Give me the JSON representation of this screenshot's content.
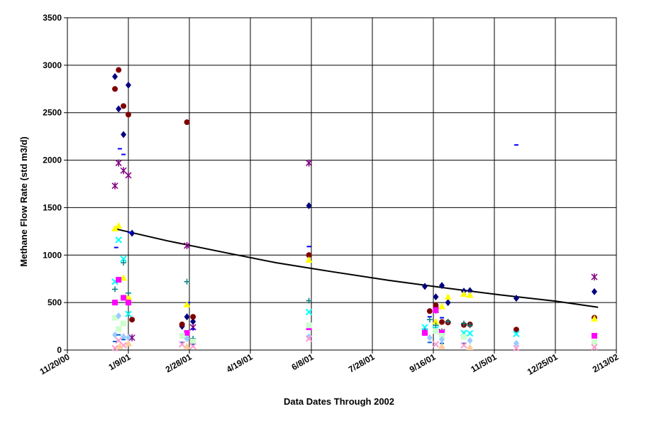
{
  "chart_data": {
    "type": "scatter",
    "title": "",
    "xlabel": "Data Dates Through 2002",
    "ylabel": "Methane Flow Rate (std m3/d)",
    "x_axis_type": "date",
    "xlim": [
      "2000-11-20",
      "2002-02-13"
    ],
    "ylim": [
      0,
      3500
    ],
    "x_ticks": [
      {
        "date": "2000-11-20",
        "label": "11/20/00"
      },
      {
        "date": "2001-01-09",
        "label": "1/9/01"
      },
      {
        "date": "2001-02-28",
        "label": "2/28/01"
      },
      {
        "date": "2001-04-19",
        "label": "4/19/01"
      },
      {
        "date": "2001-06-08",
        "label": "6/8/01"
      },
      {
        "date": "2001-07-28",
        "label": "7/28/01"
      },
      {
        "date": "2001-09-16",
        "label": "9/16/01"
      },
      {
        "date": "2001-11-05",
        "label": "11/5/01"
      },
      {
        "date": "2001-12-25",
        "label": "12/25/01"
      },
      {
        "date": "2002-02-13",
        "label": "2/13/02"
      }
    ],
    "y_ticks": [
      0,
      500,
      1000,
      1500,
      2000,
      2500,
      3000,
      3500
    ],
    "grid": true,
    "legend": "none",
    "series": [
      {
        "marker": "diamond",
        "color": "#000080",
        "points": [
          {
            "x": "2000-12-29",
            "y": 2880
          },
          {
            "x": "2001-01-01",
            "y": 2540
          },
          {
            "x": "2001-01-05",
            "y": 2270
          },
          {
            "x": "2001-01-09",
            "y": 2790
          },
          {
            "x": "2001-01-12",
            "y": 1230
          },
          {
            "x": "2001-02-22",
            "y": 250
          },
          {
            "x": "2001-02-26",
            "y": 350
          },
          {
            "x": "2001-03-03",
            "y": 300
          },
          {
            "x": "2001-06-06",
            "y": 1520
          },
          {
            "x": "2001-09-09",
            "y": 670
          },
          {
            "x": "2001-09-18",
            "y": 560
          },
          {
            "x": "2001-09-23",
            "y": 680
          },
          {
            "x": "2001-09-28",
            "y": 500
          },
          {
            "x": "2001-10-11",
            "y": 620
          },
          {
            "x": "2001-10-16",
            "y": 625
          },
          {
            "x": "2001-11-23",
            "y": 545
          },
          {
            "x": "2002-01-26",
            "y": 615
          }
        ]
      },
      {
        "marker": "circle",
        "color": "#800000",
        "points": [
          {
            "x": "2000-12-29",
            "y": 2750
          },
          {
            "x": "2001-01-01",
            "y": 2950
          },
          {
            "x": "2001-01-05",
            "y": 2570
          },
          {
            "x": "2001-01-09",
            "y": 2480
          },
          {
            "x": "2001-01-12",
            "y": 320
          },
          {
            "x": "2001-02-22",
            "y": 270
          },
          {
            "x": "2001-02-26",
            "y": 2400
          },
          {
            "x": "2001-03-03",
            "y": 350
          },
          {
            "x": "2001-06-06",
            "y": 1000
          },
          {
            "x": "2001-09-13",
            "y": 410
          },
          {
            "x": "2001-09-18",
            "y": 470
          },
          {
            "x": "2001-09-23",
            "y": 295
          },
          {
            "x": "2001-09-28",
            "y": 290
          },
          {
            "x": "2001-10-11",
            "y": 265
          },
          {
            "x": "2001-10-16",
            "y": 270
          },
          {
            "x": "2001-11-23",
            "y": 215
          },
          {
            "x": "2002-01-26",
            "y": 340
          }
        ]
      },
      {
        "marker": "star",
        "color": "#800080",
        "points": [
          {
            "x": "2000-12-29",
            "y": 1730
          },
          {
            "x": "2001-01-01",
            "y": 1970
          },
          {
            "x": "2001-01-05",
            "y": 1890
          },
          {
            "x": "2001-01-09",
            "y": 1840
          },
          {
            "x": "2001-01-12",
            "y": 130
          },
          {
            "x": "2001-02-26",
            "y": 1100
          },
          {
            "x": "2001-03-03",
            "y": 240
          },
          {
            "x": "2001-06-06",
            "y": 1970
          },
          {
            "x": "2001-09-09",
            "y": 195
          },
          {
            "x": "2001-09-18",
            "y": 420
          },
          {
            "x": "2001-09-23",
            "y": 190
          },
          {
            "x": "2002-01-26",
            "y": 770
          }
        ]
      },
      {
        "marker": "dash",
        "color": "#0000ff",
        "points": [
          {
            "x": "2000-12-30",
            "y": 1080
          },
          {
            "x": "2001-01-02",
            "y": 2120
          },
          {
            "x": "2001-01-05",
            "y": 2060
          },
          {
            "x": "2001-01-10",
            "y": 1240
          },
          {
            "x": "2001-02-27",
            "y": 500
          },
          {
            "x": "2001-03-03",
            "y": 220
          },
          {
            "x": "2001-06-06",
            "y": 1090
          },
          {
            "x": "2001-09-13",
            "y": 350
          },
          {
            "x": "2001-09-23",
            "y": 340
          },
          {
            "x": "2001-11-23",
            "y": 2160
          }
        ]
      },
      {
        "marker": "triangle",
        "color": "#ffff00",
        "points": [
          {
            "x": "2000-12-29",
            "y": 1280
          },
          {
            "x": "2001-01-01",
            "y": 1310
          },
          {
            "x": "2001-01-05",
            "y": 760
          },
          {
            "x": "2001-01-09",
            "y": 560
          },
          {
            "x": "2001-02-26",
            "y": 480
          },
          {
            "x": "2001-06-06",
            "y": 950
          },
          {
            "x": "2001-09-18",
            "y": 300
          },
          {
            "x": "2001-09-23",
            "y": 460
          },
          {
            "x": "2001-09-28",
            "y": 560
          },
          {
            "x": "2001-10-11",
            "y": 590
          },
          {
            "x": "2001-10-16",
            "y": 580
          },
          {
            "x": "2002-01-26",
            "y": 330
          }
        ]
      },
      {
        "marker": "cross",
        "color": "#00ffff",
        "points": [
          {
            "x": "2000-12-29",
            "y": 720
          },
          {
            "x": "2001-01-01",
            "y": 1160
          },
          {
            "x": "2001-01-05",
            "y": 960
          },
          {
            "x": "2001-01-09",
            "y": 380
          },
          {
            "x": "2001-06-06",
            "y": 400
          },
          {
            "x": "2001-09-09",
            "y": 240
          },
          {
            "x": "2001-09-18",
            "y": 220
          },
          {
            "x": "2001-10-11",
            "y": 180
          },
          {
            "x": "2001-10-16",
            "y": 175
          },
          {
            "x": "2001-11-23",
            "y": 170
          }
        ]
      },
      {
        "marker": "plus",
        "color": "#008080",
        "points": [
          {
            "x": "2000-12-29",
            "y": 640
          },
          {
            "x": "2001-01-05",
            "y": 920
          },
          {
            "x": "2001-01-09",
            "y": 600
          },
          {
            "x": "2001-02-26",
            "y": 720
          },
          {
            "x": "2001-03-03",
            "y": 120
          },
          {
            "x": "2001-06-06",
            "y": 520
          },
          {
            "x": "2001-09-13",
            "y": 320
          },
          {
            "x": "2001-09-18",
            "y": 260
          },
          {
            "x": "2001-09-28",
            "y": 300
          },
          {
            "x": "2001-10-11",
            "y": 280
          },
          {
            "x": "2001-10-16",
            "y": 260
          }
        ]
      },
      {
        "marker": "square",
        "color": "#ff00ff",
        "points": [
          {
            "x": "2000-12-29",
            "y": 500
          },
          {
            "x": "2001-01-01",
            "y": 740
          },
          {
            "x": "2001-01-05",
            "y": 550
          },
          {
            "x": "2001-01-09",
            "y": 500
          },
          {
            "x": "2001-02-26",
            "y": 180
          },
          {
            "x": "2001-06-06",
            "y": 240
          },
          {
            "x": "2001-09-09",
            "y": 180
          },
          {
            "x": "2001-09-18",
            "y": 420
          },
          {
            "x": "2001-09-23",
            "y": 180
          },
          {
            "x": "2002-01-26",
            "y": 150
          }
        ]
      },
      {
        "marker": "square",
        "color": "#ccffcc",
        "points": [
          {
            "x": "2000-12-29",
            "y": 340
          },
          {
            "x": "2001-01-01",
            "y": 220
          },
          {
            "x": "2001-01-05",
            "y": 280
          },
          {
            "x": "2001-02-22",
            "y": 150
          },
          {
            "x": "2001-03-03",
            "y": 90
          },
          {
            "x": "2001-06-06",
            "y": 260
          },
          {
            "x": "2001-09-18",
            "y": 200
          },
          {
            "x": "2001-09-23",
            "y": 150
          },
          {
            "x": "2001-10-11",
            "y": 140
          },
          {
            "x": "2002-01-26",
            "y": 80
          }
        ]
      },
      {
        "marker": "diamond",
        "color": "#99ccff",
        "points": [
          {
            "x": "2000-12-29",
            "y": 160
          },
          {
            "x": "2001-01-01",
            "y": 360
          },
          {
            "x": "2001-01-05",
            "y": 140
          },
          {
            "x": "2001-01-09",
            "y": 130
          },
          {
            "x": "2001-02-26",
            "y": 120
          },
          {
            "x": "2001-06-06",
            "y": 140
          },
          {
            "x": "2001-09-13",
            "y": 130
          },
          {
            "x": "2001-09-23",
            "y": 110
          },
          {
            "x": "2001-10-16",
            "y": 100
          },
          {
            "x": "2001-11-23",
            "y": 70
          }
        ]
      },
      {
        "marker": "dash",
        "color": "#0066cc",
        "points": [
          {
            "x": "2000-12-29",
            "y": 90
          },
          {
            "x": "2001-01-01",
            "y": 160
          },
          {
            "x": "2001-01-05",
            "y": 110
          },
          {
            "x": "2001-02-22",
            "y": 80
          },
          {
            "x": "2001-03-03",
            "y": 60
          },
          {
            "x": "2001-09-13",
            "y": 80
          },
          {
            "x": "2001-09-23",
            "y": 70
          },
          {
            "x": "2001-10-11",
            "y": 70
          }
        ]
      },
      {
        "marker": "cross",
        "color": "#ff99cc",
        "points": [
          {
            "x": "2000-12-29",
            "y": 20
          },
          {
            "x": "2001-01-01",
            "y": 100
          },
          {
            "x": "2001-01-05",
            "y": 50
          },
          {
            "x": "2001-02-22",
            "y": 60
          },
          {
            "x": "2001-03-03",
            "y": 40
          },
          {
            "x": "2001-06-06",
            "y": 120
          },
          {
            "x": "2001-09-18",
            "y": 60
          },
          {
            "x": "2001-10-11",
            "y": 50
          },
          {
            "x": "2001-11-23",
            "y": 20
          },
          {
            "x": "2002-01-26",
            "y": 30
          }
        ]
      },
      {
        "marker": "triangle",
        "color": "#ffcc99",
        "points": [
          {
            "x": "2001-01-02",
            "y": 40
          },
          {
            "x": "2001-01-09",
            "y": 70
          },
          {
            "x": "2001-02-26",
            "y": 40
          },
          {
            "x": "2001-09-23",
            "y": 40
          },
          {
            "x": "2001-10-16",
            "y": 30
          }
        ]
      }
    ],
    "trendline": {
      "type": "exponential",
      "color": "#000000",
      "points": [
        {
          "x": "2000-12-28",
          "y": 1280
        },
        {
          "x": "2001-02-10",
          "y": 1150
        },
        {
          "x": "2001-03-28",
          "y": 1030
        },
        {
          "x": "2001-05-10",
          "y": 920
        },
        {
          "x": "2001-06-25",
          "y": 825
        },
        {
          "x": "2001-08-10",
          "y": 735
        },
        {
          "x": "2001-09-25",
          "y": 655
        },
        {
          "x": "2001-11-10",
          "y": 580
        },
        {
          "x": "2001-12-25",
          "y": 515
        },
        {
          "x": "2002-01-29",
          "y": 450
        }
      ]
    }
  }
}
